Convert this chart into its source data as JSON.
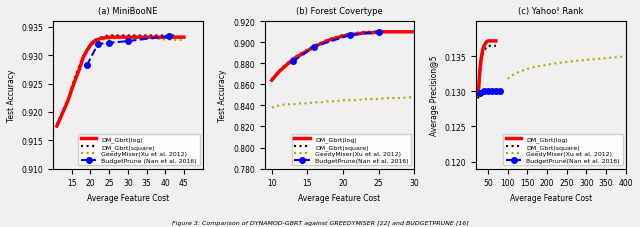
{
  "fig_width": 6.4,
  "fig_height": 2.28,
  "caption": "Figure 3: Comparison of DYNAMOD-GBRT against GREEDYMISER [22] and BUDGETPRUNE [16]",
  "subplots": [
    {
      "title": "(a) MiniBooNE",
      "xlabel": "Average Feature Cost",
      "ylabel": "Test Accuracy",
      "xlim": [
        10,
        50
      ],
      "ylim": [
        0.91,
        0.936
      ],
      "yticks": [
        0.91,
        0.915,
        0.92,
        0.925,
        0.93,
        0.935
      ],
      "xticks": [
        15,
        20,
        25,
        30,
        35,
        40,
        45
      ],
      "series": {
        "dm_log": {
          "x": [
            11,
            12,
            13,
            14,
            15,
            16,
            17,
            18,
            19,
            20,
            21,
            22,
            23,
            24,
            25,
            26,
            27,
            28,
            29,
            30,
            31,
            33,
            35,
            40,
            45
          ],
          "y": [
            0.9175,
            0.919,
            0.9205,
            0.922,
            0.924,
            0.9258,
            0.9275,
            0.9295,
            0.9308,
            0.9318,
            0.9325,
            0.9328,
            0.933,
            0.9331,
            0.9332,
            0.9332,
            0.9332,
            0.9332,
            0.9332,
            0.9332,
            0.9332,
            0.9332,
            0.9332,
            0.9332,
            0.9332
          ],
          "color": "#ff0000",
          "lw": 2.5,
          "ls": "-",
          "label": "DM_Gbrt(log)"
        },
        "dm_sq": {
          "x": [
            11,
            12,
            13,
            14,
            15,
            16,
            17,
            18,
            19,
            20,
            21,
            22,
            23,
            24,
            25,
            26,
            27,
            28,
            29,
            30,
            31,
            33,
            35,
            40,
            43
          ],
          "y": [
            0.9178,
            0.9192,
            0.9207,
            0.9222,
            0.9242,
            0.9262,
            0.928,
            0.9298,
            0.931,
            0.932,
            0.9326,
            0.933,
            0.9332,
            0.9334,
            0.9335,
            0.9335,
            0.9335,
            0.9335,
            0.9335,
            0.9335,
            0.9335,
            0.9335,
            0.9335,
            0.9335,
            0.9335
          ],
          "color": "#000000",
          "lw": 1.5,
          "ls": ":",
          "label": "DM_Gbrt(square)"
        },
        "greedy": {
          "x": [
            11,
            12,
            13,
            14,
            15,
            16,
            17,
            18,
            19,
            20,
            21,
            22,
            23,
            24,
            25,
            27,
            30,
            35,
            40,
            43,
            45
          ],
          "y": [
            0.9178,
            0.9192,
            0.9208,
            0.9224,
            0.9246,
            0.9265,
            0.9282,
            0.9298,
            0.9308,
            0.9316,
            0.9321,
            0.9325,
            0.9327,
            0.9328,
            0.9329,
            0.933,
            0.933,
            0.933,
            0.9328,
            0.9327,
            0.9327
          ],
          "color": "#aaaa00",
          "lw": 1.5,
          "ls": ":",
          "label": "GeedyMiser(Xu et al. 2012)"
        },
        "budget": {
          "x": [
            19,
            22,
            25,
            30,
            41
          ],
          "y": [
            0.9282,
            0.932,
            0.9322,
            0.9325,
            0.9334
          ],
          "color": "#0000ff",
          "lw": 1.5,
          "ls": "--",
          "marker": "o",
          "ms": 4,
          "label": "BudgetPrune (Nan et al. 2016)"
        }
      }
    },
    {
      "title": "(b) Forest Covertype",
      "xlabel": "Average Feature Cost",
      "ylabel": "Test Accuracy",
      "xlim": [
        9,
        30
      ],
      "ylim": [
        0.78,
        0.92
      ],
      "yticks": [
        0.78,
        0.8,
        0.82,
        0.84,
        0.86,
        0.88,
        0.9,
        0.92
      ],
      "xticks": [
        10,
        15,
        20,
        25,
        30
      ],
      "series": {
        "dm_log": {
          "x": [
            10,
            11,
            12,
            13,
            14,
            15,
            16,
            17,
            18,
            19,
            20,
            21,
            22,
            23,
            24,
            25,
            26,
            28,
            30
          ],
          "y": [
            0.864,
            0.872,
            0.878,
            0.884,
            0.888,
            0.892,
            0.896,
            0.899,
            0.902,
            0.904,
            0.906,
            0.907,
            0.908,
            0.909,
            0.909,
            0.91,
            0.91,
            0.91,
            0.91
          ],
          "color": "#ff0000",
          "lw": 2.5,
          "ls": "-",
          "label": "DM_Gbrt(log)"
        },
        "dm_sq": {
          "x": [
            10,
            11,
            12,
            13,
            14,
            15,
            16,
            17,
            18,
            19,
            20,
            21,
            22,
            23,
            24,
            25,
            26,
            28,
            30
          ],
          "y": [
            0.865,
            0.873,
            0.879,
            0.885,
            0.889,
            0.893,
            0.897,
            0.9,
            0.903,
            0.905,
            0.907,
            0.908,
            0.909,
            0.91,
            0.91,
            0.91,
            0.91,
            0.91,
            0.91
          ],
          "color": "#000000",
          "lw": 1.5,
          "ls": ":",
          "label": "DM_Gbrt(square)"
        },
        "greedy": {
          "x": [
            10,
            11,
            12,
            13,
            14,
            15,
            16,
            17,
            18,
            19,
            20,
            21,
            22,
            23,
            24,
            25,
            26,
            28,
            30
          ],
          "y": [
            0.838,
            0.84,
            0.841,
            0.841,
            0.842,
            0.842,
            0.843,
            0.843,
            0.844,
            0.844,
            0.845,
            0.845,
            0.845,
            0.846,
            0.846,
            0.846,
            0.847,
            0.847,
            0.848
          ],
          "color": "#aaaa00",
          "lw": 1.5,
          "ls": ":",
          "label": "GeedyMiser(Xu et al. 2012)"
        },
        "budget": {
          "x": [
            13,
            16,
            21,
            25
          ],
          "y": [
            0.882,
            0.896,
            0.907,
            0.91
          ],
          "color": "#0000ff",
          "lw": 1.5,
          "ls": "--",
          "marker": "o",
          "ms": 4,
          "label": "BudgetPrune(Nan et al. 2016)"
        }
      }
    },
    {
      "title": "(c) Yahoo! Rank",
      "xlabel": "Average Feature Cost",
      "ylabel": "Average Precision@5",
      "xlim": [
        20,
        400
      ],
      "ylim": [
        0.119,
        0.14
      ],
      "yticks": [
        0.12,
        0.125,
        0.13,
        0.135
      ],
      "xticks": [
        50,
        100,
        150,
        200,
        250,
        300,
        350,
        400
      ],
      "series": {
        "dm_log": {
          "x": [
            25,
            28,
            30,
            33,
            35,
            38,
            40,
            43,
            45,
            50,
            55,
            60,
            65,
            70
          ],
          "y": [
            0.1295,
            0.132,
            0.1335,
            0.1348,
            0.1355,
            0.1362,
            0.1365,
            0.1368,
            0.137,
            0.1372,
            0.1372,
            0.1372,
            0.1372,
            0.1372
          ],
          "color": "#ff0000",
          "lw": 2.5,
          "ls": "-",
          "label": "DM_Gbrt(log)"
        },
        "dm_sq": {
          "x": [
            25,
            28,
            30,
            33,
            35,
            38,
            40,
            43,
            45,
            50,
            55,
            60,
            65,
            70
          ],
          "y": [
            0.129,
            0.1312,
            0.1328,
            0.134,
            0.1348,
            0.1355,
            0.1358,
            0.136,
            0.1362,
            0.1365,
            0.1365,
            0.1365,
            0.1365,
            0.1365
          ],
          "color": "#000000",
          "lw": 1.5,
          "ls": ":",
          "label": "DM_Gbrt(square)"
        },
        "greedy": {
          "x": [
            100,
            110,
            120,
            130,
            140,
            150,
            160,
            180,
            200,
            220,
            250,
            280,
            320,
            360,
            400
          ],
          "y": [
            0.1318,
            0.1322,
            0.1326,
            0.1328,
            0.133,
            0.1332,
            0.1334,
            0.1336,
            0.1338,
            0.134,
            0.1342,
            0.1344,
            0.1346,
            0.1348,
            0.135
          ],
          "color": "#aaaa00",
          "lw": 1.5,
          "ls": ":",
          "label": "GeedyMiser(Xu et al. 2012)"
        },
        "budget": {
          "x": [
            30,
            40,
            50,
            60,
            70,
            80
          ],
          "y": [
            0.1298,
            0.13,
            0.13,
            0.13,
            0.13,
            0.13
          ],
          "color": "#0000ff",
          "lw": 1.5,
          "ls": "--",
          "marker": "o",
          "ms": 4,
          "label": "BudgetPrune(Nan et al. 2016)"
        }
      }
    }
  ],
  "legend_labels": [
    "DM_Gbrt(log)",
    "DM_Gbrt(square)",
    "GeedyMiser(Xu et al. 2012)",
    "BudgetPrune (Nan et al. 2016)"
  ],
  "bg_color": "#f0f0f0",
  "font_size": 5.5,
  "caption_text": "Figure 3: Comparison of DYNAMOD-GBRT against GREEDYMISER [22] and BUDGETPRUNE [16]"
}
